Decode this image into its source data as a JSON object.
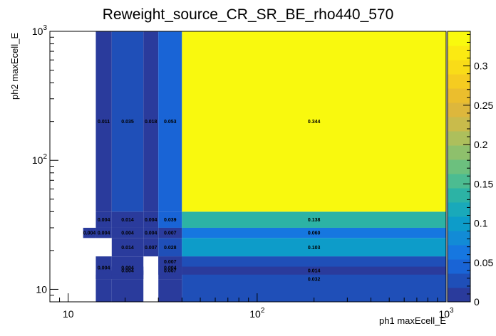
{
  "chart_data": {
    "type": "heatmap",
    "title": "Reweight_source_CR_SR_BE_rho440_570",
    "xlabel": "ph1 maxEcell_E",
    "ylabel": "ph2 maxEcell_E",
    "log_x": true,
    "log_y": true,
    "xlim": [
      8,
      1000
    ],
    "ylim": [
      8,
      1000
    ],
    "x_ticks": [
      {
        "base": "10",
        "exp": ""
      },
      {
        "base": "10",
        "exp": "2"
      },
      {
        "base": "10",
        "exp": "3"
      }
    ],
    "y_ticks": [
      {
        "base": "10",
        "exp": ""
      },
      {
        "base": "10",
        "exp": "2"
      },
      {
        "base": "10",
        "exp": "3"
      }
    ],
    "zlim": [
      0,
      0.344
    ],
    "colorbar_ticks": [
      "0",
      "0.05",
      "0.1",
      "0.15",
      "0.2",
      "0.25",
      "0.3"
    ],
    "palette": [
      "#2a3b9c",
      "#1f4fb8",
      "#1964d6",
      "#1677e0",
      "#128bd6",
      "#0d9cc9",
      "#19a9ba",
      "#2cb3a5",
      "#4cbc91",
      "#6cc07e",
      "#8ec06c",
      "#adbf5c",
      "#c9bb4b",
      "#ddb73c",
      "#ebbe2d",
      "#f5cc20",
      "#f9dc18",
      "#fbea12",
      "#f9f90e"
    ],
    "cells": [
      {
        "x0": 14,
        "x1": 17,
        "y0": 12,
        "y1": 18,
        "z": 0.004,
        "label": "0.004"
      },
      {
        "x0": 17,
        "x1": 25,
        "y0": 12,
        "y1": 18,
        "z": 0.004,
        "label": "0.004"
      },
      {
        "x0": 30,
        "x1": 40,
        "y0": 12,
        "y1": 18,
        "z": 0.004,
        "label": "0.004"
      },
      {
        "x0": 40,
        "x1": 1000,
        "y0": 8,
        "y1": 18,
        "z": 0.032,
        "label": "0.032"
      },
      {
        "x0": 30,
        "x1": 40,
        "y0": 8,
        "y1": 12,
        "z": 0.004,
        "label": ""
      },
      {
        "x0": 14,
        "x1": 17,
        "y0": 8,
        "y1": 12,
        "z": 0.004,
        "label": ""
      },
      {
        "x0": 17,
        "x1": 25,
        "y0": 8,
        "y1": 12,
        "z": 0.004,
        "label": ""
      },
      {
        "x0": 14,
        "x1": 25,
        "y0": 12,
        "y1": 14,
        "z": 0.001,
        "label": ""
      },
      {
        "x0": 14,
        "x1": 17,
        "y0": 12,
        "y1": 13,
        "z": 0.0,
        "label": ""
      },
      {
        "x0": 17,
        "x1": 25,
        "y0": 13,
        "y1": 15,
        "z": 0.004,
        "label": "0.004"
      },
      {
        "x0": 30,
        "x1": 40,
        "y0": 13,
        "y1": 15,
        "z": 0.007,
        "label": "0.007"
      },
      {
        "x0": 40,
        "x1": 1000,
        "y0": 13,
        "y1": 15,
        "z": 0.014,
        "label": "0.014"
      },
      {
        "x0": 30,
        "x1": 40,
        "y0": 15,
        "y1": 18,
        "z": 0.007,
        "label": "0.007"
      },
      {
        "x0": 40,
        "x1": 1000,
        "y0": 15,
        "y1": 18,
        "z": 0.032,
        "label": ""
      },
      {
        "x0": 17,
        "x1": 25,
        "y0": 18,
        "y1": 25,
        "z": 0.014,
        "label": "0.014"
      },
      {
        "x0": 25,
        "x1": 30,
        "y0": 18,
        "y1": 25,
        "z": 0.007,
        "label": "0.007"
      },
      {
        "x0": 30,
        "x1": 40,
        "y0": 18,
        "y1": 25,
        "z": 0.028,
        "label": "0.028"
      },
      {
        "x0": 40,
        "x1": 1000,
        "y0": 18,
        "y1": 25,
        "z": 0.103,
        "label": "0.103"
      },
      {
        "x0": 12,
        "x1": 14,
        "y0": 25,
        "y1": 30,
        "z": 0.004,
        "label": "0.004"
      },
      {
        "x0": 14,
        "x1": 17,
        "y0": 25,
        "y1": 30,
        "z": 0.004,
        "label": "0.004"
      },
      {
        "x0": 17,
        "x1": 25,
        "y0": 25,
        "y1": 30,
        "z": 0.004,
        "label": "0.004"
      },
      {
        "x0": 25,
        "x1": 30,
        "y0": 25,
        "y1": 30,
        "z": 0.004,
        "label": "0.004"
      },
      {
        "x0": 30,
        "x1": 40,
        "y0": 25,
        "y1": 30,
        "z": 0.007,
        "label": "0.007"
      },
      {
        "x0": 40,
        "x1": 1000,
        "y0": 25,
        "y1": 30,
        "z": 0.06,
        "label": "0.060"
      },
      {
        "x0": 14,
        "x1": 17,
        "y0": 30,
        "y1": 40,
        "z": 0.004,
        "label": "0.004"
      },
      {
        "x0": 17,
        "x1": 25,
        "y0": 30,
        "y1": 40,
        "z": 0.014,
        "label": "0.014"
      },
      {
        "x0": 25,
        "x1": 30,
        "y0": 30,
        "y1": 40,
        "z": 0.004,
        "label": "0.004"
      },
      {
        "x0": 30,
        "x1": 40,
        "y0": 30,
        "y1": 40,
        "z": 0.039,
        "label": "0.039"
      },
      {
        "x0": 40,
        "x1": 1000,
        "y0": 30,
        "y1": 40,
        "z": 0.138,
        "label": "0.138"
      },
      {
        "x0": 14,
        "x1": 17,
        "y0": 40,
        "y1": 1000,
        "z": 0.011,
        "label": "0.011"
      },
      {
        "x0": 17,
        "x1": 25,
        "y0": 40,
        "y1": 1000,
        "z": 0.035,
        "label": "0.035"
      },
      {
        "x0": 25,
        "x1": 30,
        "y0": 40,
        "y1": 1000,
        "z": 0.018,
        "label": "0.018"
      },
      {
        "x0": 30,
        "x1": 40,
        "y0": 40,
        "y1": 1000,
        "z": 0.053,
        "label": "0.053"
      },
      {
        "x0": 40,
        "x1": 1000,
        "y0": 40,
        "y1": 1000,
        "z": 0.344,
        "label": "0.344"
      }
    ]
  }
}
